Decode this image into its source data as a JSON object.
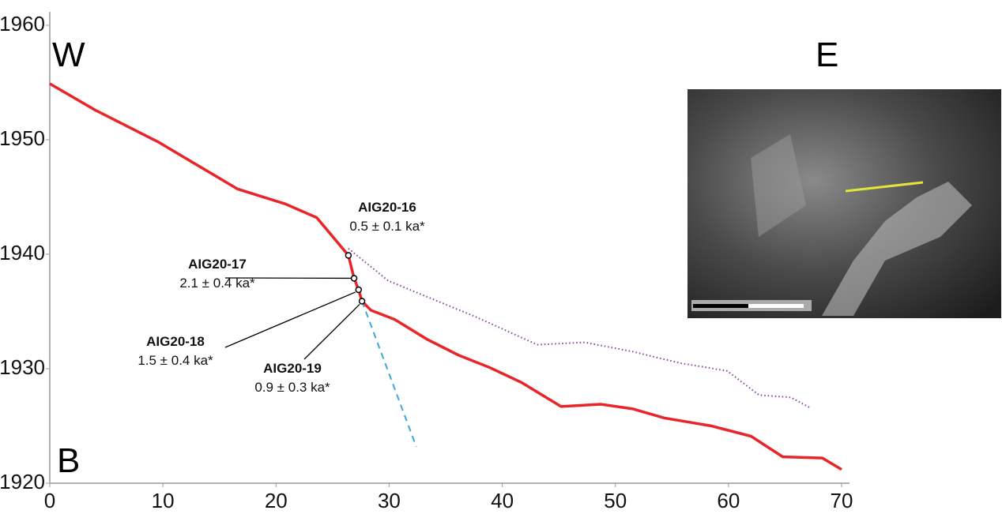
{
  "chart_data": {
    "type": "line",
    "corner_labels": {
      "west": "W",
      "east": "E",
      "panel": "B"
    },
    "xlim": [
      0,
      70
    ],
    "xticks": [
      0,
      10,
      20,
      30,
      40,
      50,
      60,
      70
    ],
    "ylim": [
      1920,
      1960
    ],
    "yticks": [
      1920,
      1930,
      1940,
      1950,
      1960
    ],
    "series": [
      {
        "color": "#e8262a",
        "style": "solid",
        "x": [
          0,
          4,
          9.6,
          16.6,
          20.8,
          23.6,
          26.4,
          26.9,
          27.3,
          27.6,
          28.4,
          30.5,
          33.3,
          36.1,
          38.9,
          41.7,
          45.2,
          48.7,
          51.5,
          54.3,
          58.5,
          62,
          64.8,
          68.3,
          70
        ],
        "values": [
          1954.9,
          1952.6,
          1949.8,
          1945.7,
          1944.4,
          1943.2,
          1939.9,
          1937.9,
          1936.9,
          1935.9,
          1935.1,
          1934.3,
          1932.6,
          1931.2,
          1930.1,
          1928.8,
          1926.7,
          1926.9,
          1926.5,
          1925.7,
          1925.0,
          1924.1,
          1922.3,
          1922.2,
          1921.2
        ]
      },
      {
        "color": "#8a3fa0",
        "style": "dotted",
        "x": [
          26.4,
          29.9,
          33.3,
          37.5,
          43.1,
          47.3,
          51.5,
          55.7,
          59.9,
          62.7,
          65.5,
          67.2
        ],
        "values": [
          1940.5,
          1937.7,
          1936.3,
          1934.6,
          1932.1,
          1932.3,
          1931.5,
          1930.5,
          1929.8,
          1927.7,
          1927.5,
          1926.6
        ]
      },
      {
        "color": "#3aa8d8",
        "style": "dashed",
        "x": [
          27.6,
          32.4
        ],
        "values": [
          1935.9,
          1923.2
        ]
      }
    ],
    "samples": [
      {
        "label": "AIG20-16",
        "age": "0.5 ± 0.1 ka*",
        "x": 26.4,
        "y": 1939.9
      },
      {
        "label": "AIG20-17",
        "age": "2.1 ± 0.4 ka*",
        "x": 26.9,
        "y": 1937.9
      },
      {
        "label": "AIG20-18",
        "age": "1.5 ± 0.4 ka*",
        "x": 27.3,
        "y": 1936.9
      },
      {
        "label": "AIG20-19",
        "age": "0.9 ± 0.3 ka*",
        "x": 27.6,
        "y": 1935.9
      }
    ]
  }
}
